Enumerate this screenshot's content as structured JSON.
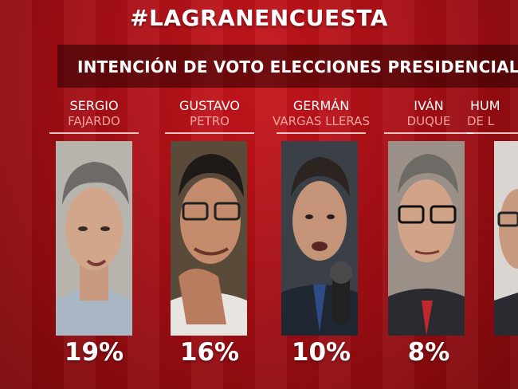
{
  "header": {
    "hashtag": "#LAGRANENCUESTA",
    "subtitle": "INTENCIÓN DE VOTO ELECCIONES PRESIDENCIALES"
  },
  "colors": {
    "background": "#b3121a",
    "surname": "#f4a3a3"
  },
  "chart_data": {
    "type": "table",
    "title": "INTENCIÓN DE VOTO ELECCIONES PRESIDENCIALES",
    "categories": [
      "SERGIO FAJARDO",
      "GUSTAVO PETRO",
      "GERMÁN VARGAS LLERAS",
      "IVÁN DUQUE",
      "HUM… DE L…"
    ],
    "values": [
      19,
      16,
      10,
      8,
      null
    ],
    "unit": "%"
  },
  "candidates": [
    {
      "first": "SERGIO",
      "last": "FAJARDO",
      "percent": "19%",
      "value": 19,
      "photo_icon": "man-grey-curly-hair-portrait"
    },
    {
      "first": "GUSTAVO",
      "last": "PETRO",
      "percent": "16%",
      "value": 16,
      "photo_icon": "man-glasses-hand-on-chin-portrait"
    },
    {
      "first": "GERMÁN",
      "last": "VARGAS LLERAS",
      "percent": "10%",
      "value": 10,
      "photo_icon": "man-speaking-microphone-portrait"
    },
    {
      "first": "IVÁN",
      "last": "DUQUE",
      "percent": "8%",
      "value": 8,
      "photo_icon": "man-glasses-red-tie-portrait"
    },
    {
      "first": "HUM",
      "last": "DE L",
      "percent": "",
      "value": null,
      "photo_icon": "man-glasses-partial-portrait"
    }
  ]
}
